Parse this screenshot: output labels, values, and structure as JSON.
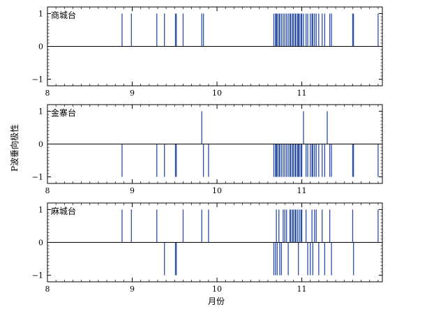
{
  "chart_data": {
    "type": "bar",
    "xlabel": "月份",
    "ylabel": "P波垂向极性",
    "xlim": [
      8,
      11.95
    ],
    "ylim": [
      -1.2,
      1.2
    ],
    "xticks": [
      8,
      9,
      10,
      11
    ],
    "yticks": [
      -1,
      0,
      1
    ],
    "panels": [
      {
        "station": "商城台",
        "up": [
          8.88,
          8.99,
          9.29,
          9.38,
          9.51,
          9.52,
          9.6,
          9.82,
          9.84,
          10.67,
          10.69,
          10.7,
          10.71,
          10.73,
          10.74,
          10.76,
          10.78,
          10.8,
          10.82,
          10.84,
          10.86,
          10.87,
          10.89,
          10.9,
          10.92,
          10.93,
          10.95,
          10.96,
          10.97,
          10.99,
          11.0,
          11.02,
          11.05,
          11.07,
          11.1,
          11.12,
          11.13,
          11.15,
          11.17,
          11.2,
          11.24,
          11.27,
          11.33,
          11.35,
          11.6,
          11.61,
          11.9
        ],
        "down": []
      },
      {
        "station": "金寨台",
        "up": [
          9.82,
          11.02,
          11.3
        ],
        "down": [
          8.88,
          9.29,
          9.38,
          9.51,
          9.52,
          9.84,
          9.9,
          10.67,
          10.69,
          10.7,
          10.71,
          10.73,
          10.74,
          10.76,
          10.78,
          10.8,
          10.82,
          10.84,
          10.86,
          10.87,
          10.89,
          10.9,
          10.92,
          10.93,
          10.95,
          10.96,
          10.97,
          10.99,
          11.0,
          11.05,
          11.07,
          11.1,
          11.12,
          11.13,
          11.15,
          11.17,
          11.2,
          11.24,
          11.27,
          11.33,
          11.35,
          11.6,
          11.61,
          11.9
        ]
      },
      {
        "station": "麻城台",
        "up": [
          8.88,
          8.99,
          9.29,
          9.6,
          9.82,
          9.9,
          10.7,
          10.73,
          10.78,
          10.8,
          10.82,
          10.86,
          10.87,
          10.89,
          10.9,
          10.92,
          10.93,
          10.95,
          10.97,
          10.99,
          11.0,
          11.05,
          11.12,
          11.15,
          11.17,
          11.24,
          11.33,
          11.6,
          11.9
        ],
        "down": [
          9.38,
          9.51,
          9.52,
          10.67,
          10.69,
          10.71,
          10.74,
          10.76,
          10.84,
          10.96,
          11.07,
          11.1,
          11.13,
          11.2,
          11.27,
          11.35,
          11.61
        ]
      }
    ]
  }
}
